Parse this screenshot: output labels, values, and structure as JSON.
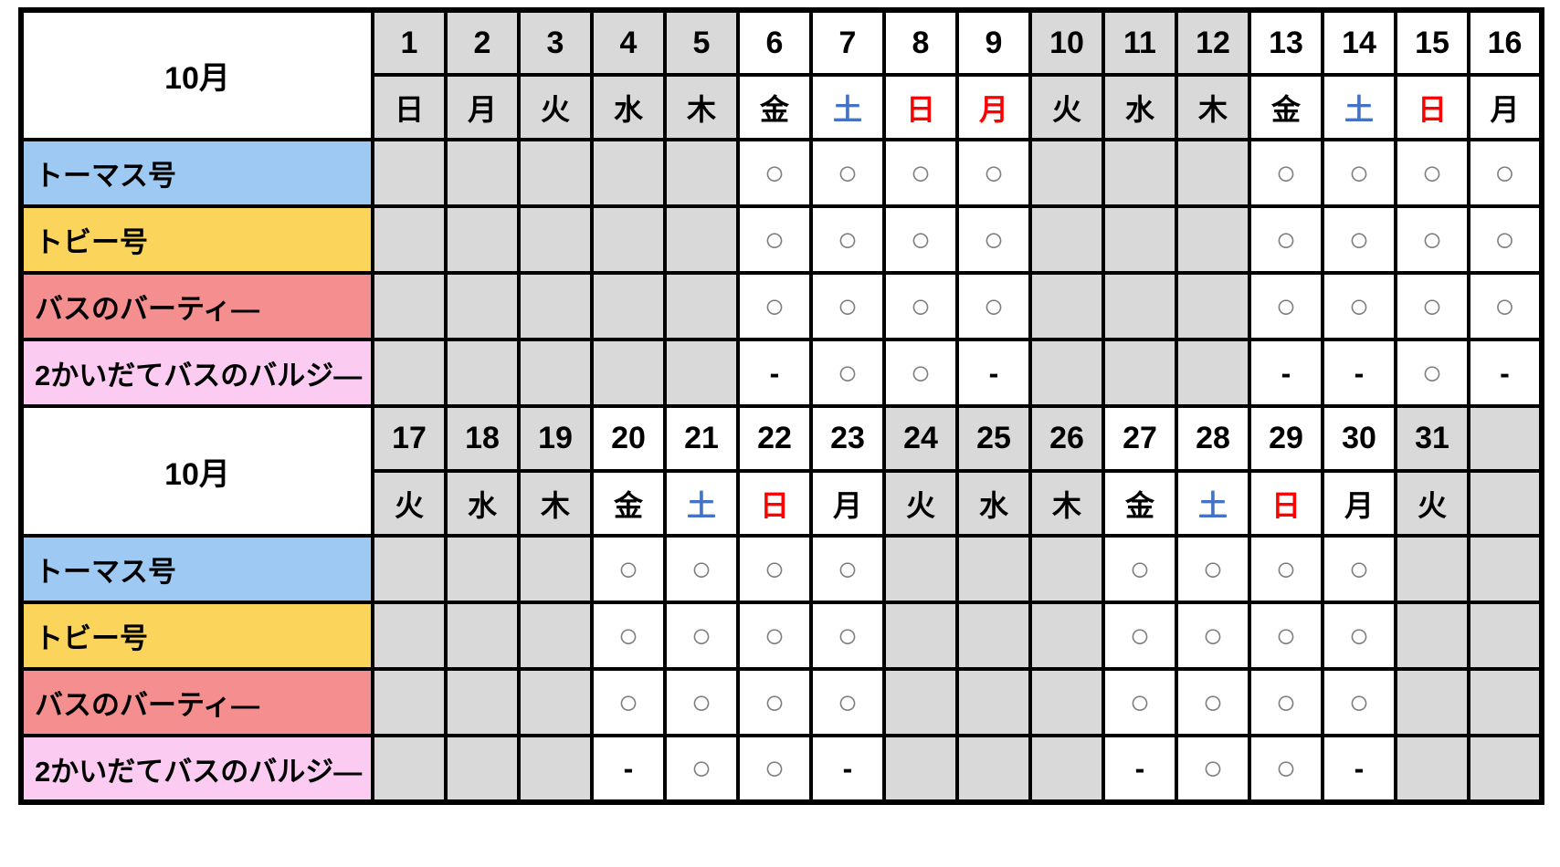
{
  "symbols": {
    "operating": "○",
    "not_operating": "-"
  },
  "colors": {
    "closed_bg": "#D9D9D9",
    "saturday_text": "#4472C4",
    "sunday_text": "#FF0000",
    "circle": "#7F7F7F",
    "thomas": "#9DC9F2",
    "toby": "#FBD45B",
    "bertie": "#F58F8F",
    "bulgy": "#FBCBF2"
  },
  "vehicles": [
    {
      "id": "thomas",
      "label": "トーマス号",
      "color_key": "thomas"
    },
    {
      "id": "toby",
      "label": "トビー号",
      "color_key": "toby"
    },
    {
      "id": "bertie",
      "label": "バスのバーティ―",
      "color_key": "bertie"
    },
    {
      "id": "bulgy",
      "label": "2かいだてバスのバルジ―",
      "color_key": "bulgy"
    }
  ],
  "halves": [
    {
      "month_label": "10月",
      "days": [
        {
          "date": "1",
          "dow": "日",
          "dow_color": "black",
          "closed": true
        },
        {
          "date": "2",
          "dow": "月",
          "dow_color": "black",
          "closed": true
        },
        {
          "date": "3",
          "dow": "火",
          "dow_color": "black",
          "closed": true
        },
        {
          "date": "4",
          "dow": "水",
          "dow_color": "black",
          "closed": true
        },
        {
          "date": "5",
          "dow": "木",
          "dow_color": "black",
          "closed": true
        },
        {
          "date": "6",
          "dow": "金",
          "dow_color": "black",
          "closed": false
        },
        {
          "date": "7",
          "dow": "土",
          "dow_color": "sat",
          "closed": false
        },
        {
          "date": "8",
          "dow": "日",
          "dow_color": "sun",
          "closed": false
        },
        {
          "date": "9",
          "dow": "月",
          "dow_color": "sun",
          "closed": false
        },
        {
          "date": "10",
          "dow": "火",
          "dow_color": "black",
          "closed": true
        },
        {
          "date": "11",
          "dow": "水",
          "dow_color": "black",
          "closed": true
        },
        {
          "date": "12",
          "dow": "木",
          "dow_color": "black",
          "closed": true
        },
        {
          "date": "13",
          "dow": "金",
          "dow_color": "black",
          "closed": false
        },
        {
          "date": "14",
          "dow": "土",
          "dow_color": "sat",
          "closed": false
        },
        {
          "date": "15",
          "dow": "日",
          "dow_color": "sun",
          "closed": false
        },
        {
          "date": "16",
          "dow": "月",
          "dow_color": "black",
          "closed": false
        }
      ],
      "rows": [
        {
          "vehicle": "thomas",
          "cells": [
            "",
            "",
            "",
            "",
            "",
            "○",
            "○",
            "○",
            "○",
            "",
            "",
            "",
            "○",
            "○",
            "○",
            "○"
          ]
        },
        {
          "vehicle": "toby",
          "cells": [
            "",
            "",
            "",
            "",
            "",
            "○",
            "○",
            "○",
            "○",
            "",
            "",
            "",
            "○",
            "○",
            "○",
            "○"
          ]
        },
        {
          "vehicle": "bertie",
          "cells": [
            "",
            "",
            "",
            "",
            "",
            "○",
            "○",
            "○",
            "○",
            "",
            "",
            "",
            "○",
            "○",
            "○",
            "○"
          ]
        },
        {
          "vehicle": "bulgy",
          "cells": [
            "",
            "",
            "",
            "",
            "",
            "-",
            "○",
            "○",
            "-",
            "",
            "",
            "",
            "-",
            "-",
            "○",
            "-"
          ]
        }
      ]
    },
    {
      "month_label": "10月",
      "days": [
        {
          "date": "17",
          "dow": "火",
          "dow_color": "black",
          "closed": true
        },
        {
          "date": "18",
          "dow": "水",
          "dow_color": "black",
          "closed": true
        },
        {
          "date": "19",
          "dow": "木",
          "dow_color": "black",
          "closed": true
        },
        {
          "date": "20",
          "dow": "金",
          "dow_color": "black",
          "closed": false
        },
        {
          "date": "21",
          "dow": "土",
          "dow_color": "sat",
          "closed": false
        },
        {
          "date": "22",
          "dow": "日",
          "dow_color": "sun",
          "closed": false
        },
        {
          "date": "23",
          "dow": "月",
          "dow_color": "black",
          "closed": false
        },
        {
          "date": "24",
          "dow": "火",
          "dow_color": "black",
          "closed": true
        },
        {
          "date": "25",
          "dow": "水",
          "dow_color": "black",
          "closed": true
        },
        {
          "date": "26",
          "dow": "木",
          "dow_color": "black",
          "closed": true
        },
        {
          "date": "27",
          "dow": "金",
          "dow_color": "black",
          "closed": false
        },
        {
          "date": "28",
          "dow": "土",
          "dow_color": "sat",
          "closed": false
        },
        {
          "date": "29",
          "dow": "日",
          "dow_color": "sun",
          "closed": false
        },
        {
          "date": "30",
          "dow": "月",
          "dow_color": "black",
          "closed": false
        },
        {
          "date": "31",
          "dow": "火",
          "dow_color": "black",
          "closed": true
        },
        {
          "date": "",
          "dow": "",
          "dow_color": "black",
          "closed": true
        }
      ],
      "rows": [
        {
          "vehicle": "thomas",
          "cells": [
            "",
            "",
            "",
            "○",
            "○",
            "○",
            "○",
            "",
            "",
            "",
            "○",
            "○",
            "○",
            "○",
            "",
            ""
          ]
        },
        {
          "vehicle": "toby",
          "cells": [
            "",
            "",
            "",
            "○",
            "○",
            "○",
            "○",
            "",
            "",
            "",
            "○",
            "○",
            "○",
            "○",
            "",
            ""
          ]
        },
        {
          "vehicle": "bertie",
          "cells": [
            "",
            "",
            "",
            "○",
            "○",
            "○",
            "○",
            "",
            "",
            "",
            "○",
            "○",
            "○",
            "○",
            "",
            ""
          ]
        },
        {
          "vehicle": "bulgy",
          "cells": [
            "",
            "",
            "",
            "-",
            "○",
            "○",
            "-",
            "",
            "",
            "",
            "-",
            "○",
            "○",
            "-",
            "",
            ""
          ]
        }
      ]
    }
  ]
}
